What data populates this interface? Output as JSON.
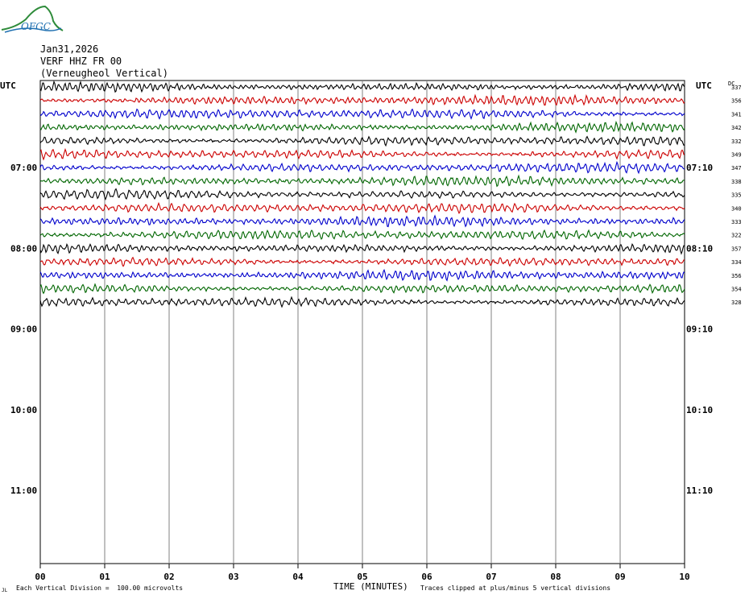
{
  "logo": {
    "text": "OFGC"
  },
  "header": {
    "date": "Jan31,2026",
    "station": "VERF HHZ FR 00",
    "location": "(Verneugheol Vertical)"
  },
  "left_axis_label": "UTC",
  "right_axis_label": "UTC",
  "dc_label": "DC",
  "left_hour_labels": [
    "07:00",
    "08:00",
    "09:00",
    "10:00",
    "11:00"
  ],
  "right_hour_labels": [
    "07:10",
    "08:10",
    "09:10",
    "10:10",
    "11:10"
  ],
  "footer": {
    "scale_note": "Each Vertical Division =  100.00 microvolts",
    "axis_title": "TIME (MINUTES)",
    "clip_note": "Traces clipped at plus/minus 5 vertical divisions",
    "corner_mark": "JL"
  },
  "colors": {
    "black": "#000000",
    "red": "#cc0000",
    "blue": "#0000cc",
    "green": "#006600",
    "grid": "#808080"
  },
  "chart_data": {
    "type": "line",
    "title": "Jan31,2026 VERF HHZ FR 00 (Verneugheol Vertical)",
    "xlabel": "TIME (MINUTES)",
    "x_ticks": [
      "00",
      "01",
      "02",
      "03",
      "04",
      "05",
      "06",
      "07",
      "08",
      "09",
      "10"
    ],
    "xlim": [
      0,
      10
    ],
    "trace_minutes": 10,
    "trace_color_cycle": [
      "black",
      "red",
      "blue",
      "green"
    ],
    "dc_offsets": [
      337,
      356,
      341,
      342,
      332,
      349,
      347,
      338,
      335,
      340,
      333,
      322,
      357,
      334,
      356,
      354,
      328
    ],
    "amplitude_unit": "100.00 microvolts per vertical division"
  }
}
